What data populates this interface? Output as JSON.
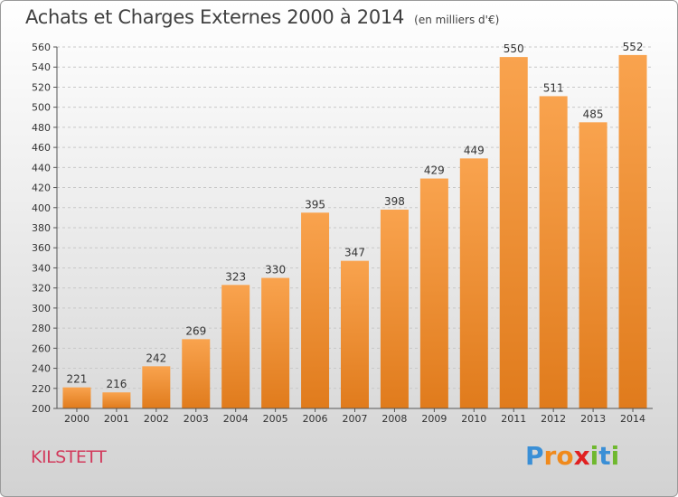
{
  "title": "Achats et Charges Externes 2000 à 2014",
  "unit": "(en milliers d'€)",
  "commune": "KILSTETT",
  "logo": {
    "letters": [
      {
        "ch": "P",
        "color": "#3a8fd6"
      },
      {
        "ch": "r",
        "color": "#f08a1c"
      },
      {
        "ch": "o",
        "color": "#f08a1c"
      },
      {
        "ch": "x",
        "color": "#e02020"
      },
      {
        "ch": "i",
        "color": "#6fb82e"
      },
      {
        "ch": "t",
        "color": "#3a8fd6"
      },
      {
        "ch": "i",
        "color": "#6fb82e"
      }
    ]
  },
  "colors": {
    "bar_top": "#f9a34e",
    "bar_bottom": "#e07b1c",
    "grid": "#c8c8c8",
    "axis_text": "#333333"
  },
  "chart_data": {
    "type": "bar",
    "title": "Achats et Charges Externes 2000 à 2014",
    "subtitle": "(en milliers d'€)",
    "xlabel": "",
    "ylabel": "",
    "categories": [
      "2000",
      "2001",
      "2002",
      "2003",
      "2004",
      "2005",
      "2006",
      "2007",
      "2008",
      "2009",
      "2010",
      "2011",
      "2012",
      "2013",
      "2014"
    ],
    "values": [
      221,
      216,
      242,
      269,
      323,
      330,
      395,
      347,
      398,
      429,
      449,
      550,
      511,
      485,
      552
    ],
    "ylim": [
      200,
      560
    ],
    "yticks": [
      200,
      220,
      240,
      260,
      280,
      300,
      320,
      340,
      360,
      380,
      400,
      420,
      440,
      460,
      480,
      500,
      520,
      540,
      560
    ],
    "grid": true,
    "legend": "none"
  }
}
